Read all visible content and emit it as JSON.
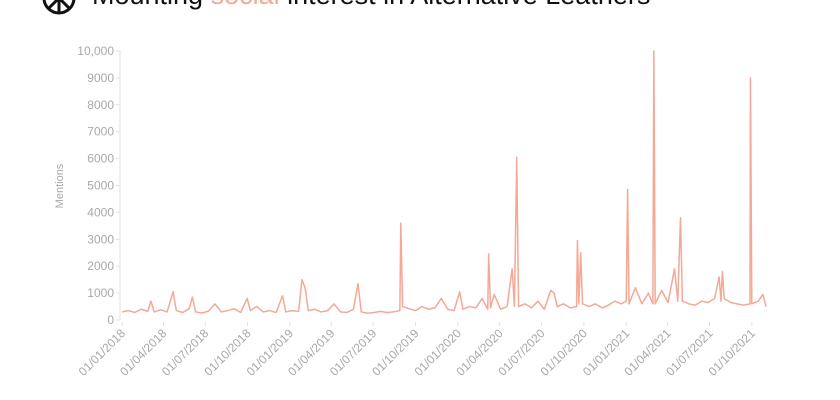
{
  "chart_data": {
    "type": "line",
    "title": [
      "Mounting",
      "social",
      "interest in Alternative Leathers"
    ],
    "title_highlight_color": "#f4a896",
    "y_label": "Mentions",
    "color": "#f4a896",
    "x": [
      "2018-01-01",
      "2018-01-15",
      "2018-01-29",
      "2018-02-12",
      "2018-02-26",
      "2018-03-05",
      "2018-03-12",
      "2018-03-26",
      "2018-04-09",
      "2018-04-22",
      "2018-04-29",
      "2018-05-13",
      "2018-05-27",
      "2018-06-03",
      "2018-06-10",
      "2018-06-24",
      "2018-07-08",
      "2018-07-22",
      "2018-08-05",
      "2018-08-19",
      "2018-09-02",
      "2018-09-16",
      "2018-09-30",
      "2018-10-07",
      "2018-10-21",
      "2018-11-04",
      "2018-11-18",
      "2018-12-02",
      "2018-12-16",
      "2018-12-23",
      "2019-01-06",
      "2019-01-20",
      "2019-01-27",
      "2019-02-03",
      "2019-02-10",
      "2019-02-24",
      "2019-03-10",
      "2019-03-24",
      "2019-04-07",
      "2019-04-21",
      "2019-05-05",
      "2019-05-19",
      "2019-05-29",
      "2019-06-05",
      "2019-06-19",
      "2019-07-03",
      "2019-07-17",
      "2019-07-31",
      "2019-08-14",
      "2019-08-28",
      "2019-08-30",
      "2019-09-03",
      "2019-09-17",
      "2019-10-01",
      "2019-10-15",
      "2019-10-29",
      "2019-11-12",
      "2019-11-26",
      "2019-12-10",
      "2019-12-24",
      "2020-01-05",
      "2020-01-12",
      "2020-01-26",
      "2020-02-09",
      "2020-02-23",
      "2020-03-06",
      "2020-03-08",
      "2020-03-12",
      "2020-03-20",
      "2020-04-03",
      "2020-04-17",
      "2020-04-28",
      "2020-05-03",
      "2020-05-08",
      "2020-05-12",
      "2020-05-26",
      "2020-06-09",
      "2020-06-23",
      "2020-07-07",
      "2020-07-21",
      "2020-07-28",
      "2020-08-04",
      "2020-08-18",
      "2020-09-01",
      "2020-09-15",
      "2020-09-17",
      "2020-09-20",
      "2020-09-24",
      "2020-09-28",
      "2020-10-12",
      "2020-10-26",
      "2020-11-09",
      "2020-11-23",
      "2020-12-07",
      "2020-12-21",
      "2021-01-01",
      "2021-01-04",
      "2021-01-07",
      "2021-01-21",
      "2021-02-04",
      "2021-02-18",
      "2021-02-28",
      "2021-03-02",
      "2021-03-05",
      "2021-03-19",
      "2021-04-02",
      "2021-04-16",
      "2021-04-23",
      "2021-04-29",
      "2021-05-03",
      "2021-05-17",
      "2021-05-31",
      "2021-06-14",
      "2021-06-28",
      "2021-07-12",
      "2021-07-22",
      "2021-07-26",
      "2021-07-29",
      "2021-08-02",
      "2021-08-16",
      "2021-08-30",
      "2021-09-13",
      "2021-09-27",
      "2021-09-28",
      "2021-10-01",
      "2021-10-15",
      "2021-10-25",
      "2021-11-01"
    ],
    "values": [
      300,
      350,
      280,
      400,
      320,
      700,
      300,
      380,
      300,
      1050,
      350,
      280,
      420,
      850,
      300,
      260,
      330,
      600,
      300,
      350,
      420,
      280,
      800,
      350,
      500,
      300,
      350,
      280,
      900,
      300,
      350,
      320,
      1500,
      1200,
      350,
      400,
      300,
      350,
      600,
      300,
      280,
      400,
      1350,
      300,
      250,
      280,
      320,
      280,
      300,
      350,
      3600,
      500,
      420,
      350,
      500,
      400,
      450,
      800,
      400,
      350,
      1050,
      400,
      500,
      450,
      800,
      400,
      2450,
      450,
      950,
      400,
      500,
      1900,
      500,
      6050,
      500,
      600,
      450,
      700,
      400,
      1100,
      1000,
      500,
      600,
      450,
      500,
      2950,
      600,
      2500,
      600,
      500,
      600,
      450,
      550,
      700,
      600,
      700,
      4850,
      600,
      1200,
      600,
      1000,
      600,
      10000,
      600,
      1100,
      650,
      1900,
      700,
      3800,
      700,
      600,
      550,
      700,
      650,
      800,
      1600,
      700,
      1800,
      800,
      650,
      600,
      550,
      600,
      9000,
      600,
      700,
      950,
      500
    ],
    "xlim": [
      "2018-01-01",
      "2021-11-03"
    ],
    "xticks": [
      {
        "value": "2018-01-01",
        "label": "01/01/2018"
      },
      {
        "value": "2018-04-01",
        "label": "01/04/2018"
      },
      {
        "value": "2018-07-01",
        "label": "01/07/2018"
      },
      {
        "value": "2018-10-01",
        "label": "01/10/2018"
      },
      {
        "value": "2019-01-01",
        "label": "01/01/2019"
      },
      {
        "value": "2019-04-01",
        "label": "01/04/2019"
      },
      {
        "value": "2019-07-01",
        "label": "01/07/2019"
      },
      {
        "value": "2019-10-01",
        "label": "01/10/2019"
      },
      {
        "value": "2020-01-01",
        "label": "01/01/2020"
      },
      {
        "value": "2020-04-01",
        "label": "01/04/2020"
      },
      {
        "value": "2020-07-01",
        "label": "01/07/2020"
      },
      {
        "value": "2020-10-01",
        "label": "01/10/2020"
      },
      {
        "value": "2021-01-01",
        "label": "01/01/2021"
      },
      {
        "value": "2021-04-01",
        "label": "01/04/2021"
      },
      {
        "value": "2021-07-01",
        "label": "01/07/2021"
      },
      {
        "value": "2021-10-01",
        "label": "01/10/2021"
      }
    ],
    "ylim": [
      0,
      10000
    ],
    "yticks": [
      0,
      1000,
      2000,
      3000,
      4000,
      5000,
      6000,
      7000,
      8000,
      9000,
      {
        "value": 10000,
        "label": "10,000"
      }
    ],
    "grid": false
  }
}
